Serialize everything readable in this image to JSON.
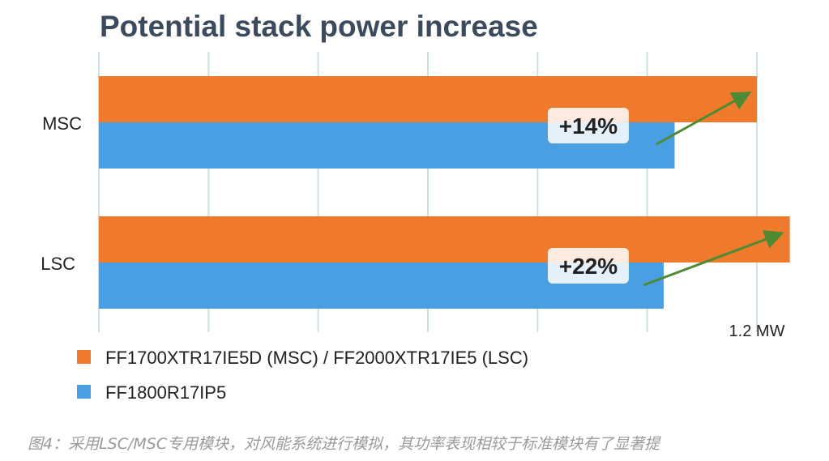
{
  "chart_data": {
    "type": "bar",
    "orientation": "horizontal",
    "title": "Potential stack power increase",
    "categories": [
      "MSC",
      "LSC"
    ],
    "series": [
      {
        "name": "FF1700XTR17IE5D (MSC) / FF2000XTR17IE5 (LSC)",
        "color": "#f07a2c",
        "values": [
          1.2,
          1.26
        ]
      },
      {
        "name": "FF1800R17IP5",
        "color": "#4a9fe2",
        "values": [
          1.05,
          1.03
        ]
      }
    ],
    "annotations": [
      "+14%",
      "+22%"
    ],
    "tick_label": "1.2 MW",
    "xlim": [
      0,
      1.27
    ],
    "grid": true,
    "legend_position": "bottom-left",
    "arrow_color": "#4e8a34"
  },
  "caption": "图4：采用LSC/MSC专用模块，对风能系统进行模拟，其功率表现相较于标准模块有了显著提"
}
